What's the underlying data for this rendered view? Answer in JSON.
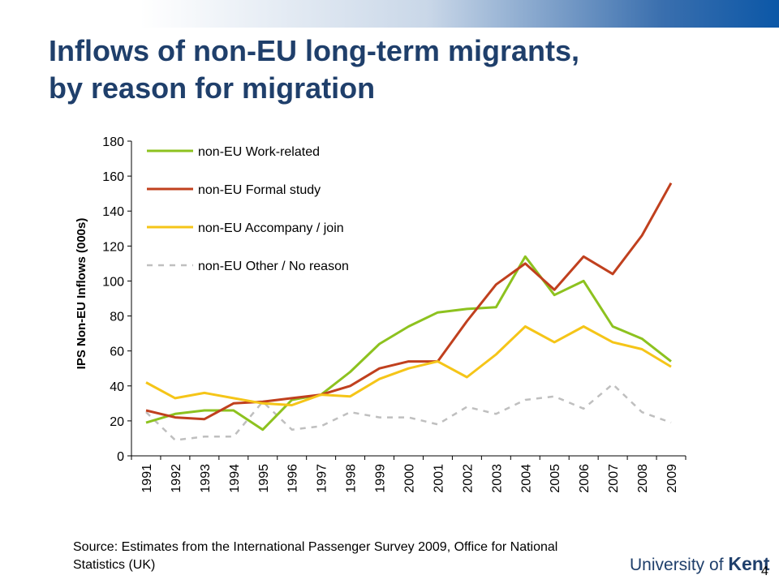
{
  "slide": {
    "title_line1": "Inflows of non-EU long-term migrants,",
    "title_line2": "by reason for migration",
    "source_line1": "Source: Estimates from the International Passenger Survey 2009, Office for National",
    "source_line2": "Statistics (UK)",
    "logo_text_prefix": "University of ",
    "logo_text_brand": "Kent",
    "page_number": "4",
    "accent_color": "#1f3f6b"
  },
  "chart_data": {
    "type": "line",
    "ylabel": "IPS Non-EU Inflows (000s)",
    "xlabel": "",
    "ylim": [
      0,
      180
    ],
    "yticks": [
      0,
      20,
      40,
      60,
      80,
      100,
      120,
      140,
      160,
      180
    ],
    "categories": [
      "1991",
      "1992",
      "1993",
      "1994",
      "1995",
      "1996",
      "1997",
      "1998",
      "1999",
      "2000",
      "2001",
      "2002",
      "2003",
      "2004",
      "2005",
      "2006",
      "2007",
      "2008",
      "2009"
    ],
    "legend_position": "top-left",
    "grid": false,
    "series": [
      {
        "name": "non-EU Work-related",
        "color": "#8dc21f",
        "dashed": false,
        "values": [
          19,
          24,
          26,
          26,
          15,
          32,
          35,
          48,
          64,
          74,
          82,
          84,
          85,
          114,
          92,
          100,
          74,
          67,
          54
        ]
      },
      {
        "name": "non-EU Formal study",
        "color": "#c0401e",
        "dashed": false,
        "values": [
          26,
          22,
          21,
          30,
          31,
          33,
          35,
          40,
          50,
          54,
          54,
          77,
          98,
          110,
          95,
          114,
          104,
          126,
          156
        ]
      },
      {
        "name": "non-EU Accompany / join",
        "color": "#f5c518",
        "dashed": false,
        "values": [
          42,
          33,
          36,
          33,
          30,
          29,
          35,
          34,
          44,
          50,
          54,
          45,
          58,
          74,
          65,
          74,
          65,
          61,
          51
        ]
      },
      {
        "name": "non-EU Other / No reason",
        "color": "#bfbfbf",
        "dashed": true,
        "values": [
          25,
          9,
          11,
          11,
          31,
          15,
          17,
          25,
          22,
          22,
          18,
          28,
          24,
          32,
          34,
          27,
          41,
          25,
          19
        ]
      }
    ]
  }
}
